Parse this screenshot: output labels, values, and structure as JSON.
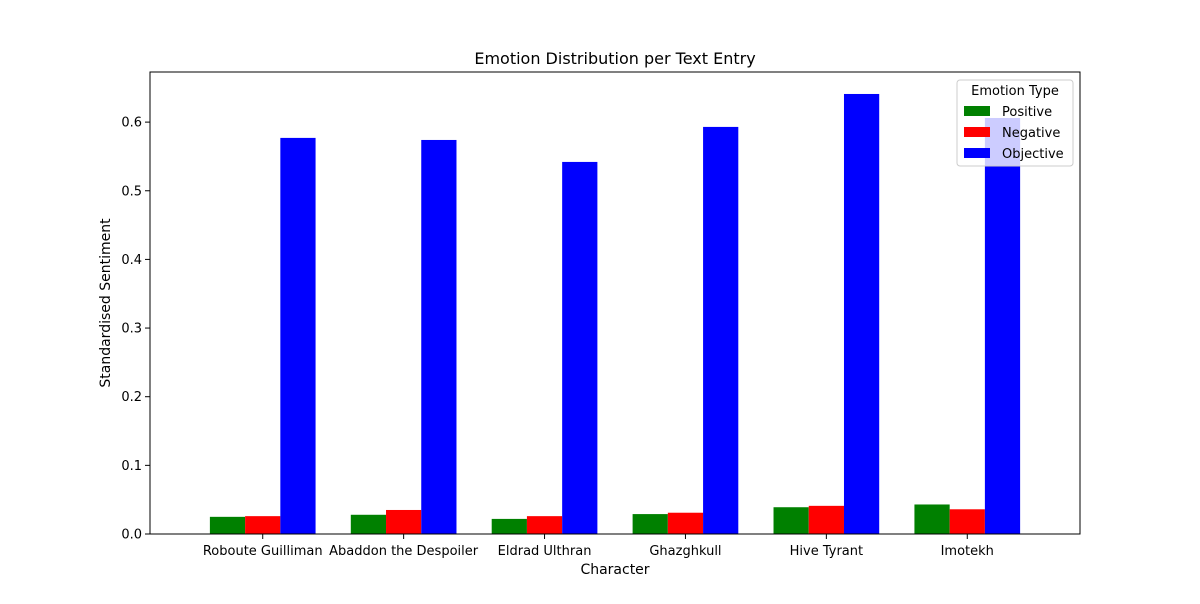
{
  "chart_data": {
    "type": "bar",
    "title": "Emotion Distribution per Text Entry",
    "xlabel": "Character",
    "ylabel": "Standardised Sentiment",
    "categories": [
      "Roboute Guilliman",
      "Abaddon the Despoiler",
      "Eldrad Ulthran",
      "Ghazghkull",
      "Hive Tyrant",
      "Imotekh"
    ],
    "series": [
      {
        "name": "Positive",
        "color": "#008000",
        "values": [
          0.025,
          0.028,
          0.022,
          0.029,
          0.039,
          0.043
        ]
      },
      {
        "name": "Negative",
        "color": "#ff0000",
        "values": [
          0.026,
          0.035,
          0.026,
          0.031,
          0.041,
          0.036
        ]
      },
      {
        "name": "Objective",
        "color": "#0000ff",
        "values": [
          0.577,
          0.574,
          0.542,
          0.593,
          0.641,
          0.606
        ]
      }
    ],
    "ylim": [
      0,
      0.673
    ],
    "yticks": [
      "0.0",
      "0.1",
      "0.2",
      "0.3",
      "0.4",
      "0.5",
      "0.6"
    ],
    "grid": false,
    "legend": {
      "title": "Emotion Type",
      "position": "top-right"
    }
  }
}
